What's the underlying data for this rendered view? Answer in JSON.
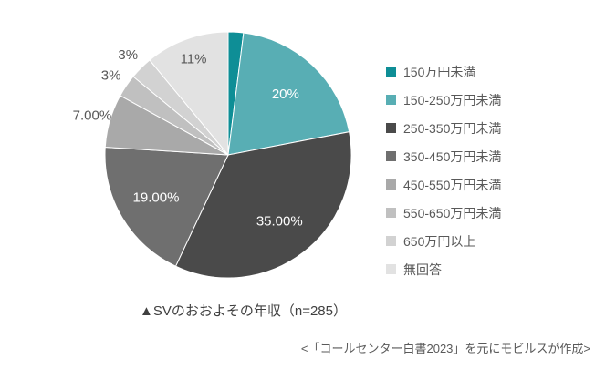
{
  "chart_data": {
    "type": "pie",
    "title": "▲SVのおおよその年収（n=285）",
    "source_note": "<「コールセンター白書2023」を元にモビルスが作成>",
    "start_angle_deg": 0,
    "direction": "clockwise",
    "legend_position": "right",
    "label_color_inside": "#ffffff",
    "label_color_outside": "#595959",
    "slice_border_color": "#ffffff",
    "background_color": "#ffffff",
    "slices": [
      {
        "label": "150万円未満",
        "value": 2,
        "color": "#0e8e96",
        "data_label": "",
        "label_style": "none"
      },
      {
        "label": "150-250万円未満",
        "value": 20,
        "color": "#58aeb4",
        "data_label": "20%",
        "label_style": "inside-white"
      },
      {
        "label": "250-350万円未満",
        "value": 35,
        "color": "#4a4a4a",
        "data_label": "35.00%",
        "label_style": "inside-white"
      },
      {
        "label": "350-450万円未満",
        "value": 19,
        "color": "#6f6f6f",
        "data_label": "19.00%",
        "label_style": "inside-white"
      },
      {
        "label": "450-550万円未満",
        "value": 7,
        "color": "#a9a9a9",
        "data_label": "7.00%",
        "label_style": "outside"
      },
      {
        "label": "550-650万円未満",
        "value": 3,
        "color": "#c0c0c0",
        "data_label": "3%",
        "label_style": "outside"
      },
      {
        "label": "650万円以上",
        "value": 3,
        "color": "#d2d2d2",
        "data_label": "3%",
        "label_style": "outside"
      },
      {
        "label": "無回答",
        "value": 11,
        "color": "#e2e2e2",
        "data_label": "11%",
        "label_style": "inside-dark"
      }
    ]
  }
}
